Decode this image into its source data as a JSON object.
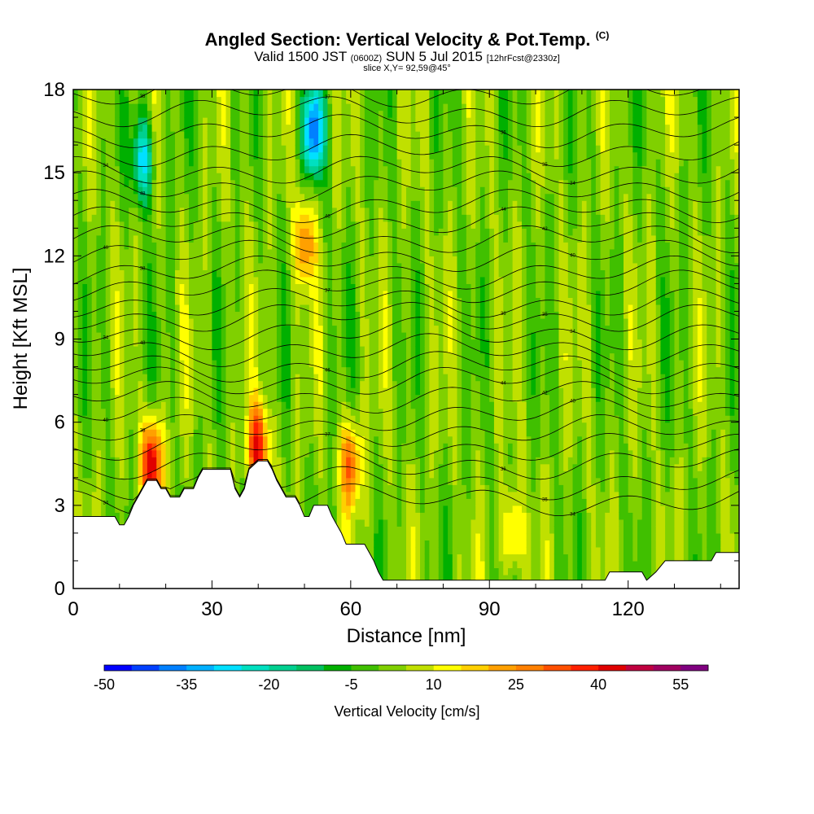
{
  "header": {
    "title": "Angled Section: Vertical Velocity & Pot.Temp.",
    "title_unit": "(C)",
    "valid_prefix": "Valid 1500 JST",
    "valid_utc": "(0600Z)",
    "valid_date": "SUN 5 Jul 2015",
    "forecast": "[12hrFcst@2330z]",
    "slice": "slice X,Y= 92,59@45°"
  },
  "chart_data": {
    "type": "heatmap",
    "title": "Angled Section: Vertical Velocity & Pot.Temp.",
    "xlabel": "Distance [nm]",
    "ylabel": "Height [Kft MSL]",
    "xlim": [
      0,
      144
    ],
    "ylim": [
      0,
      18
    ],
    "xticks": [
      0,
      30,
      60,
      90,
      120
    ],
    "yticks": [
      0,
      3,
      6,
      9,
      12,
      15,
      18
    ],
    "colorbar": {
      "label": "Vertical Velocity [cm/s]",
      "min": -50,
      "max": 60,
      "step": 5,
      "tick_values": [
        -50,
        -35,
        -20,
        -5,
        10,
        25,
        40,
        55
      ],
      "colors": [
        "#0000ff",
        "#0040ff",
        "#0080ff",
        "#00b0ff",
        "#00e0ff",
        "#00e0c0",
        "#00d090",
        "#00c060",
        "#00b000",
        "#40c000",
        "#80d000",
        "#c0e000",
        "#ffff00",
        "#ffd000",
        "#ffa000",
        "#ff8000",
        "#ff5000",
        "#ff2000",
        "#e00000",
        "#c00040",
        "#a00060",
        "#800080"
      ]
    },
    "terrain_kft": [
      [
        0,
        2.6
      ],
      [
        9,
        2.6
      ],
      [
        10,
        2.3
      ],
      [
        11,
        2.3
      ],
      [
        12,
        2.6
      ],
      [
        13,
        3.0
      ],
      [
        14,
        3.3
      ],
      [
        15,
        3.6
      ],
      [
        16,
        3.9
      ],
      [
        18,
        3.9
      ],
      [
        19,
        3.6
      ],
      [
        20,
        3.6
      ],
      [
        21,
        3.3
      ],
      [
        23,
        3.3
      ],
      [
        24,
        3.6
      ],
      [
        26,
        3.6
      ],
      [
        27,
        4.0
      ],
      [
        28,
        4.3
      ],
      [
        34,
        4.3
      ],
      [
        35,
        3.6
      ],
      [
        36,
        3.3
      ],
      [
        37,
        3.6
      ],
      [
        38,
        4.3
      ],
      [
        40,
        4.6
      ],
      [
        42,
        4.6
      ],
      [
        43,
        4.3
      ],
      [
        44,
        3.9
      ],
      [
        45,
        3.6
      ],
      [
        46,
        3.3
      ],
      [
        48,
        3.3
      ],
      [
        49,
        3.0
      ],
      [
        50,
        2.6
      ],
      [
        51,
        2.6
      ],
      [
        52,
        3.0
      ],
      [
        55,
        3.0
      ],
      [
        56,
        2.6
      ],
      [
        57,
        2.3
      ],
      [
        58,
        2.0
      ],
      [
        59,
        1.6
      ],
      [
        63,
        1.6
      ],
      [
        64,
        1.3
      ],
      [
        65,
        1.0
      ],
      [
        66,
        0.6
      ],
      [
        67,
        0.3
      ],
      [
        115,
        0.3
      ],
      [
        116,
        0.6
      ],
      [
        123,
        0.6
      ],
      [
        124,
        0.3
      ],
      [
        126,
        0.6
      ],
      [
        128,
        1.0
      ],
      [
        138,
        1.0
      ],
      [
        139,
        1.3
      ],
      [
        144,
        1.3
      ]
    ],
    "series": [
      {
        "name": "Vertical Velocity [cm/s]",
        "upward_maxima": [
          {
            "x": 17,
            "y": 4.5,
            "value": 45
          },
          {
            "x": 40,
            "y": 5.0,
            "value": 40
          },
          {
            "x": 50,
            "y": 12.5,
            "value": 25
          },
          {
            "x": 60,
            "y": 4.5,
            "value": 30
          },
          {
            "x": 95,
            "y": 2.0,
            "value": 20
          }
        ],
        "downward_minima": [
          {
            "x": 15,
            "y": 15.5,
            "value": -30
          },
          {
            "x": 52,
            "y": 16.5,
            "value": -40
          }
        ]
      },
      {
        "name": "Pot.Temp. (C)",
        "isentrope_base_kft": [
          3.2,
          3.8,
          4.5,
          5.1,
          5.7,
          6.3,
          6.9,
          7.5,
          8.0,
          8.6,
          9.2,
          9.8,
          10.3,
          10.9,
          11.4,
          12.0,
          12.6,
          13.2,
          13.8,
          14.5,
          15.1,
          15.8,
          16.5,
          17.2,
          17.9
        ],
        "labels_sampled": [
          "34",
          "35",
          "36",
          "37",
          "38",
          "40",
          "42",
          "44",
          "46",
          "48"
        ]
      }
    ]
  }
}
